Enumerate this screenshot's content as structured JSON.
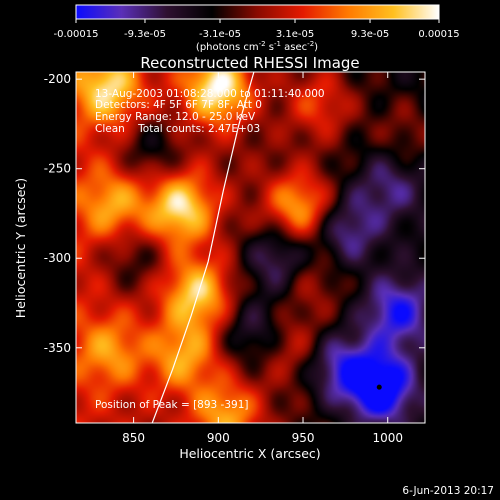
{
  "chart_data": {
    "type": "heatmap",
    "title": "Reconstructed RHESSI Image",
    "xlabel": "Heliocentric X (arcsec)",
    "ylabel": "Heliocentric Y (arcsec)",
    "xlim": [
      816,
      1022
    ],
    "ylim": [
      -392,
      -196
    ],
    "x_ticks": [
      850,
      900,
      950,
      1000
    ],
    "x_tick_labels": [
      "850",
      "900",
      "950",
      "1000"
    ],
    "y_ticks": [
      -200,
      -250,
      -300,
      -350
    ],
    "y_tick_labels": [
      "-200",
      "-250",
      "-300",
      "-350"
    ],
    "colorbar": {
      "min": -0.00015,
      "max": 0.00015,
      "tick_values": [
        -0.00015,
        -9.3e-05,
        -3.1e-05,
        3.1e-05,
        9.3e-05,
        0.00015
      ],
      "tick_labels": [
        "-0.00015",
        "-9.3e-05",
        "-3.1e-05",
        "3.1e-05",
        "9.3e-05",
        "0.00015"
      ],
      "units_label": "(photons cm",
      "units_exp1": "-2",
      "units_mid": " s",
      "units_exp2": "-1",
      "units_tail": " asec",
      "units_exp3": "-2",
      "units_close": ")",
      "colormap": [
        "#0a0aff",
        "#5a2fb8",
        "#2e1030",
        "#000000",
        "#8a0a00",
        "#e41a00",
        "#ff7a00",
        "#ffc020",
        "#ffffff"
      ]
    },
    "annotations": [
      "13-Aug-2003 01:08:28.000 to 01:11:40.000",
      "Detectors: 4F 5F 6F 7F 8F, Att 0",
      "Energy Range: 12.0 - 25.0 keV",
      "Clean    Total counts: 2.47E+03"
    ],
    "peak_label": "Position of Peak = [893 -391]",
    "peak_position": [
      893,
      -391
    ],
    "limb_curve": {
      "x": [
        861,
        873,
        884,
        894,
        903,
        912,
        921
      ],
      "y": [
        -392,
        -362,
        -332,
        -302,
        -262,
        -226,
        -196
      ]
    },
    "hot_spots": [
      {
        "x": 900,
        "y": -205,
        "value": 0.00015
      },
      {
        "x": 835,
        "y": -205,
        "value": 0.00011
      },
      {
        "x": 878,
        "y": -272,
        "value": 0.00013
      },
      {
        "x": 948,
        "y": -272,
        "value": 0.00012
      },
      {
        "x": 888,
        "y": -320,
        "value": 0.00012
      },
      {
        "x": 838,
        "y": -270,
        "value": 8e-05
      },
      {
        "x": 905,
        "y": -388,
        "value": 0.0001
      },
      {
        "x": 880,
        "y": -355,
        "value": 9e-05
      },
      {
        "x": 960,
        "y": -214,
        "value": 7e-05
      },
      {
        "x": 955,
        "y": -312,
        "value": 4e-05
      },
      {
        "x": 945,
        "y": -350,
        "value": 5e-05
      },
      {
        "x": 836,
        "y": -352,
        "value": 7e-05
      },
      {
        "x": 1012,
        "y": -230,
        "value": 4e-05
      }
    ],
    "cold_spots": [
      {
        "x": 995,
        "y": -372,
        "value": -0.00015
      },
      {
        "x": 1005,
        "y": -330,
        "value": -0.0001
      },
      {
        "x": 975,
        "y": -285,
        "value": -8e-05
      },
      {
        "x": 935,
        "y": -300,
        "value": -9e-05
      },
      {
        "x": 860,
        "y": -240,
        "value": -6e-05
      },
      {
        "x": 920,
        "y": -340,
        "value": -7e-05
      },
      {
        "x": 970,
        "y": -360,
        "value": -9e-05
      },
      {
        "x": 1000,
        "y": -260,
        "value": -6e-05
      },
      {
        "x": 850,
        "y": -300,
        "value": -5e-05
      }
    ]
  },
  "footer": {
    "date": "6-Jun-2013 20:17"
  }
}
